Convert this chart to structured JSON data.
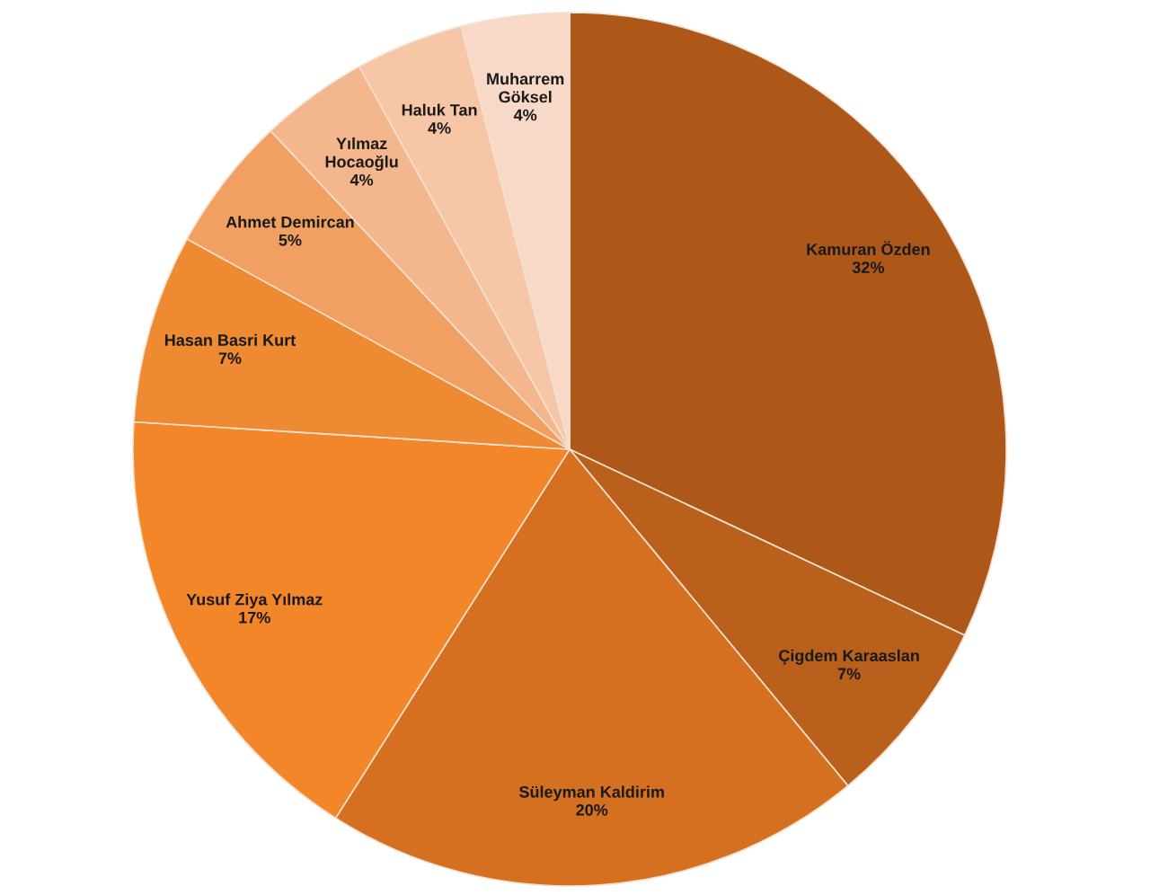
{
  "chart_data": {
    "type": "pie",
    "categories": [
      "Kamuran Özden",
      "Çigdem Karaaslan",
      "Süleyman Kaldirim",
      "Yusuf Ziya Yılmaz",
      "Hasan Basri Kurt",
      "Ahmet Demircan",
      "Yılmaz\nHocaoğlu",
      "Haluk Tan",
      "Muharrem\nGöksel"
    ],
    "values": [
      32,
      7,
      20,
      17,
      7,
      5,
      4,
      4,
      4
    ],
    "colors": [
      "#ad5818",
      "#b9611c",
      "#d4701f",
      "#f4862a",
      "#ee8a32",
      "#f1a061",
      "#f3b68d",
      "#f6c6a6",
      "#f8d8c6"
    ],
    "value_labels": [
      "32%",
      "7%",
      "20%",
      "17%",
      "7%",
      "5%",
      "4%",
      "4%",
      "4%"
    ]
  }
}
